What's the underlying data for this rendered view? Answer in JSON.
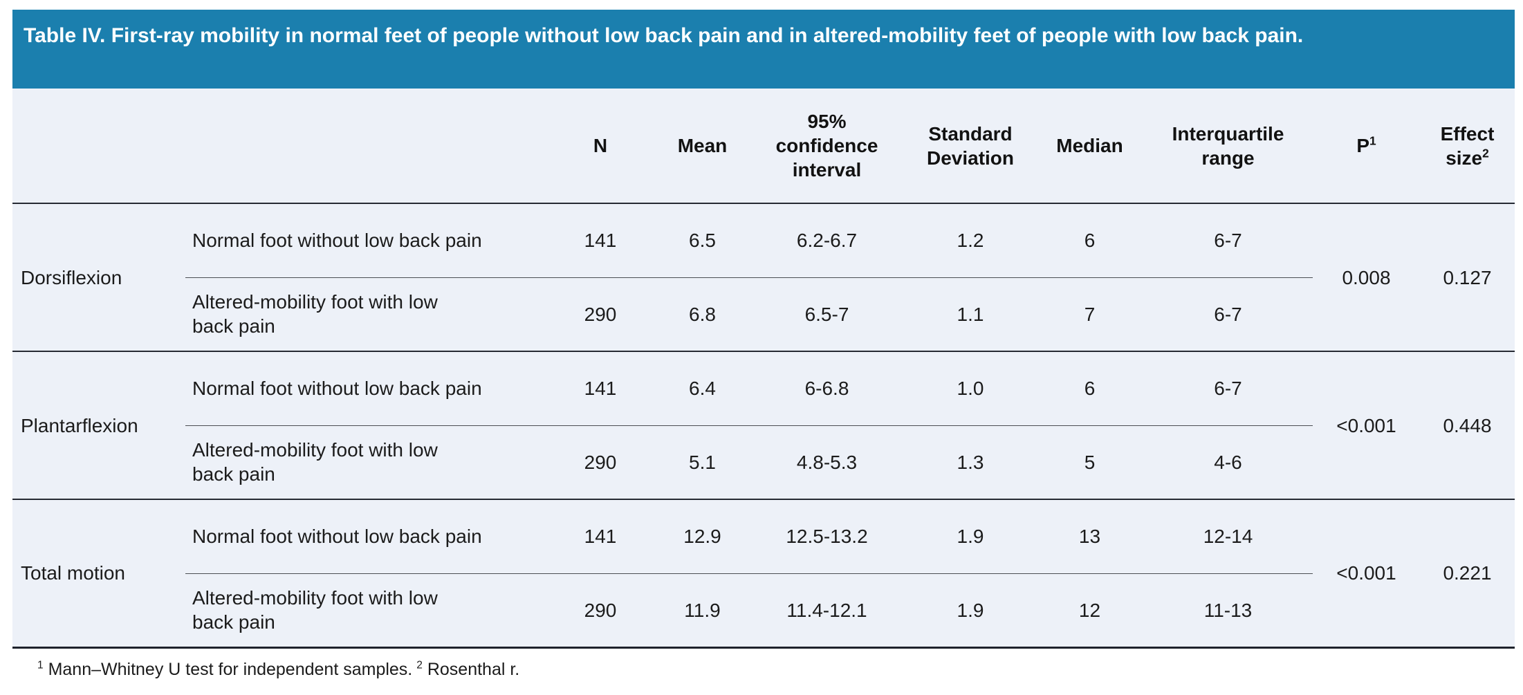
{
  "banner": {
    "title": "Table IV. First-ray mobility in normal feet of people without low back pain and in altered-mobility feet of people with low back pain.",
    "background": "#1b7fae",
    "text_color": "#ffffff"
  },
  "table": {
    "background": "#edf1f8",
    "columns": [
      {
        "label": "N"
      },
      {
        "label": "Mean"
      },
      {
        "label": "95% confidence interval"
      },
      {
        "label": "Standard Deviation"
      },
      {
        "label": "Median"
      },
      {
        "label": "Interquartile range"
      },
      {
        "label": "P",
        "sup": "1"
      },
      {
        "label": "Effect size",
        "sup": "2"
      }
    ],
    "groups": [
      {
        "name": "Dorsiflexion",
        "p": "0.008",
        "effect_size": "0.127",
        "rows": [
          {
            "label": "Normal foot without low back pain",
            "n": "141",
            "mean": "6.5",
            "ci": "6.2-6.7",
            "sd": "1.2",
            "median": "6",
            "iqr": "6-7"
          },
          {
            "label": "Altered-mobility foot with low back pain",
            "n": "290",
            "mean": "6.8",
            "ci": "6.5-7",
            "sd": "1.1",
            "median": "7",
            "iqr": "6-7"
          }
        ]
      },
      {
        "name": "Plantarflexion",
        "p": "<0.001",
        "effect_size": "0.448",
        "rows": [
          {
            "label": "Normal foot without low back pain",
            "n": "141",
            "mean": "6.4",
            "ci": "6-6.8",
            "sd": "1.0",
            "median": "6",
            "iqr": "6-7"
          },
          {
            "label": "Altered-mobility foot with low back pain",
            "n": "290",
            "mean": "5.1",
            "ci": "4.8-5.3",
            "sd": "1.3",
            "median": "5",
            "iqr": "4-6"
          }
        ]
      },
      {
        "name": "Total motion",
        "p": "<0.001",
        "effect_size": "0.221",
        "rows": [
          {
            "label": "Normal foot without low back pain",
            "n": "141",
            "mean": "12.9",
            "ci": "12.5-13.2",
            "sd": "1.9",
            "median": "13",
            "iqr": "12-14"
          },
          {
            "label": "Altered-mobility foot with low back pain",
            "n": "290",
            "mean": "11.9",
            "ci": "11.4-12.1",
            "sd": "1.9",
            "median": "12",
            "iqr": "11-13"
          }
        ]
      }
    ]
  },
  "footnote": {
    "note1": {
      "sup": "1",
      "text": "Mann–Whitney U test for independent samples."
    },
    "note2": {
      "sup": "2",
      "text": "Rosenthal r."
    }
  }
}
